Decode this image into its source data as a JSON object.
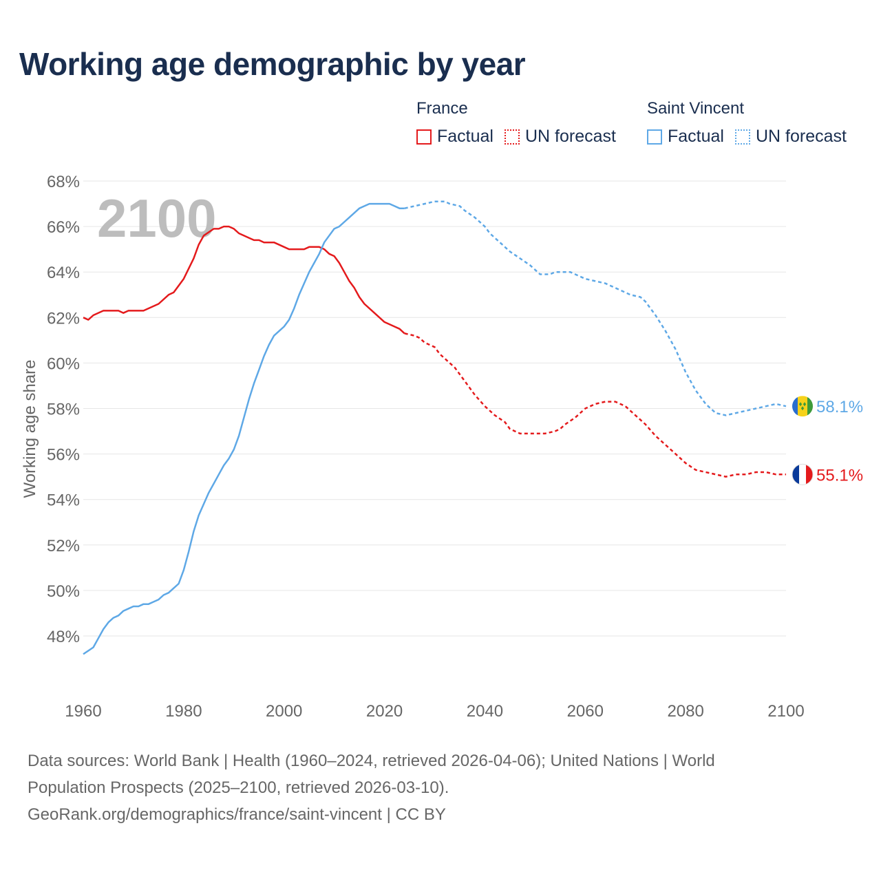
{
  "page": {
    "title": "Working age demographic by year"
  },
  "legend": {
    "groups": [
      {
        "name": "France",
        "color": "#e41a1c",
        "factual_label": "Factual",
        "forecast_label": "UN forecast"
      },
      {
        "name": "Saint Vincent",
        "color": "#5ea8e6",
        "factual_label": "Factual",
        "forecast_label": "UN forecast"
      }
    ]
  },
  "footer": {
    "line1": "Data sources: World Bank | Health (1960–2024, retrieved 2026-04-06); United Nations | World",
    "line2": "Population Prospects (2025–2100, retrieved 2026-03-10).",
    "line3": "GeoRank.org/demographics/france/saint-vincent | CC BY"
  },
  "chart_data": {
    "type": "line",
    "title": "Working age demographic by year",
    "xlabel": "",
    "ylabel": "Working age share",
    "xlim": [
      1960,
      2100
    ],
    "ylim": [
      46,
      68
    ],
    "x_ticks": [
      1960,
      1980,
      2000,
      2020,
      2040,
      2060,
      2080,
      2100
    ],
    "y_ticks": [
      48,
      50,
      52,
      54,
      56,
      58,
      60,
      62,
      64,
      66,
      68
    ],
    "y_tick_suffix": "%",
    "grid": true,
    "watermark_year": "2100",
    "factual_end_year": 2024,
    "series": [
      {
        "name": "France",
        "color": "#e41a1c",
        "end_label": "55.1%",
        "points": [
          [
            1960,
            62.0
          ],
          [
            1961,
            61.9
          ],
          [
            1962,
            62.1
          ],
          [
            1964,
            62.3
          ],
          [
            1967,
            62.3
          ],
          [
            1968,
            62.2
          ],
          [
            1969,
            62.3
          ],
          [
            1972,
            62.3
          ],
          [
            1975,
            62.6
          ],
          [
            1977,
            63.0
          ],
          [
            1978,
            63.1
          ],
          [
            1980,
            63.7
          ],
          [
            1982,
            64.6
          ],
          [
            1983,
            65.2
          ],
          [
            1984,
            65.6
          ],
          [
            1986,
            65.9
          ],
          [
            1987,
            65.9
          ],
          [
            1988,
            66.0
          ],
          [
            1989,
            66.0
          ],
          [
            1990,
            65.9
          ],
          [
            1991,
            65.7
          ],
          [
            1993,
            65.5
          ],
          [
            1994,
            65.4
          ],
          [
            1995,
            65.4
          ],
          [
            1996,
            65.3
          ],
          [
            1998,
            65.3
          ],
          [
            2000,
            65.1
          ],
          [
            2001,
            65.0
          ],
          [
            2004,
            65.0
          ],
          [
            2005,
            65.1
          ],
          [
            2007,
            65.1
          ],
          [
            2008,
            65.0
          ],
          [
            2009,
            64.8
          ],
          [
            2010,
            64.7
          ],
          [
            2011,
            64.4
          ],
          [
            2012,
            64.0
          ],
          [
            2013,
            63.6
          ],
          [
            2014,
            63.3
          ],
          [
            2015,
            62.9
          ],
          [
            2016,
            62.6
          ],
          [
            2018,
            62.2
          ],
          [
            2020,
            61.8
          ],
          [
            2022,
            61.6
          ],
          [
            2023,
            61.5
          ],
          [
            2024,
            61.3
          ],
          [
            2026,
            61.2
          ],
          [
            2027,
            61.1
          ],
          [
            2028,
            60.9
          ],
          [
            2030,
            60.7
          ],
          [
            2031,
            60.4
          ],
          [
            2032,
            60.2
          ],
          [
            2034,
            59.8
          ],
          [
            2036,
            59.2
          ],
          [
            2037,
            58.9
          ],
          [
            2038,
            58.6
          ],
          [
            2040,
            58.1
          ],
          [
            2042,
            57.7
          ],
          [
            2044,
            57.4
          ],
          [
            2045,
            57.1
          ],
          [
            2047,
            56.9
          ],
          [
            2050,
            56.9
          ],
          [
            2052,
            56.9
          ],
          [
            2054,
            57.0
          ],
          [
            2055,
            57.1
          ],
          [
            2056,
            57.3
          ],
          [
            2058,
            57.6
          ],
          [
            2060,
            58.0
          ],
          [
            2062,
            58.2
          ],
          [
            2064,
            58.3
          ],
          [
            2066,
            58.3
          ],
          [
            2068,
            58.1
          ],
          [
            2070,
            57.7
          ],
          [
            2072,
            57.3
          ],
          [
            2074,
            56.8
          ],
          [
            2076,
            56.4
          ],
          [
            2078,
            56.0
          ],
          [
            2080,
            55.6
          ],
          [
            2082,
            55.3
          ],
          [
            2084,
            55.2
          ],
          [
            2086,
            55.1
          ],
          [
            2088,
            55.0
          ],
          [
            2090,
            55.1
          ],
          [
            2092,
            55.1
          ],
          [
            2094,
            55.2
          ],
          [
            2096,
            55.2
          ],
          [
            2098,
            55.1
          ],
          [
            2100,
            55.1
          ]
        ]
      },
      {
        "name": "Saint Vincent",
        "color": "#5ea8e6",
        "end_label": "58.1%",
        "points": [
          [
            1960,
            47.2
          ],
          [
            1962,
            47.5
          ],
          [
            1963,
            47.9
          ],
          [
            1964,
            48.3
          ],
          [
            1965,
            48.6
          ],
          [
            1966,
            48.8
          ],
          [
            1967,
            48.9
          ],
          [
            1968,
            49.1
          ],
          [
            1969,
            49.2
          ],
          [
            1970,
            49.3
          ],
          [
            1971,
            49.3
          ],
          [
            1972,
            49.4
          ],
          [
            1973,
            49.4
          ],
          [
            1974,
            49.5
          ],
          [
            1975,
            49.6
          ],
          [
            1976,
            49.8
          ],
          [
            1977,
            49.9
          ],
          [
            1978,
            50.1
          ],
          [
            1979,
            50.3
          ],
          [
            1980,
            50.9
          ],
          [
            1981,
            51.7
          ],
          [
            1982,
            52.6
          ],
          [
            1983,
            53.3
          ],
          [
            1984,
            53.8
          ],
          [
            1985,
            54.3
          ],
          [
            1986,
            54.7
          ],
          [
            1987,
            55.1
          ],
          [
            1988,
            55.5
          ],
          [
            1989,
            55.8
          ],
          [
            1990,
            56.2
          ],
          [
            1991,
            56.8
          ],
          [
            1992,
            57.6
          ],
          [
            1993,
            58.4
          ],
          [
            1994,
            59.1
          ],
          [
            1995,
            59.7
          ],
          [
            1996,
            60.3
          ],
          [
            1997,
            60.8
          ],
          [
            1998,
            61.2
          ],
          [
            1999,
            61.4
          ],
          [
            2000,
            61.6
          ],
          [
            2001,
            61.9
          ],
          [
            2002,
            62.4
          ],
          [
            2003,
            63.0
          ],
          [
            2004,
            63.5
          ],
          [
            2005,
            64.0
          ],
          [
            2006,
            64.4
          ],
          [
            2007,
            64.8
          ],
          [
            2008,
            65.3
          ],
          [
            2009,
            65.6
          ],
          [
            2010,
            65.9
          ],
          [
            2011,
            66.0
          ],
          [
            2012,
            66.2
          ],
          [
            2013,
            66.4
          ],
          [
            2014,
            66.6
          ],
          [
            2015,
            66.8
          ],
          [
            2016,
            66.9
          ],
          [
            2017,
            67.0
          ],
          [
            2018,
            67.0
          ],
          [
            2020,
            67.0
          ],
          [
            2021,
            67.0
          ],
          [
            2022,
            66.9
          ],
          [
            2023,
            66.8
          ],
          [
            2024,
            66.8
          ],
          [
            2026,
            66.9
          ],
          [
            2028,
            67.0
          ],
          [
            2030,
            67.1
          ],
          [
            2032,
            67.1
          ],
          [
            2033,
            67.0
          ],
          [
            2035,
            66.9
          ],
          [
            2036,
            66.7
          ],
          [
            2038,
            66.4
          ],
          [
            2040,
            66.0
          ],
          [
            2041,
            65.7
          ],
          [
            2043,
            65.3
          ],
          [
            2045,
            64.9
          ],
          [
            2047,
            64.6
          ],
          [
            2049,
            64.3
          ],
          [
            2050,
            64.1
          ],
          [
            2051,
            63.9
          ],
          [
            2053,
            63.9
          ],
          [
            2054,
            64.0
          ],
          [
            2057,
            64.0
          ],
          [
            2058,
            63.9
          ],
          [
            2060,
            63.7
          ],
          [
            2062,
            63.6
          ],
          [
            2064,
            63.5
          ],
          [
            2066,
            63.3
          ],
          [
            2068,
            63.1
          ],
          [
            2069,
            63.0
          ],
          [
            2071,
            62.9
          ],
          [
            2072,
            62.7
          ],
          [
            2074,
            62.1
          ],
          [
            2076,
            61.4
          ],
          [
            2078,
            60.6
          ],
          [
            2080,
            59.6
          ],
          [
            2082,
            58.8
          ],
          [
            2084,
            58.2
          ],
          [
            2086,
            57.8
          ],
          [
            2088,
            57.7
          ],
          [
            2090,
            57.8
          ],
          [
            2092,
            57.9
          ],
          [
            2094,
            58.0
          ],
          [
            2096,
            58.1
          ],
          [
            2098,
            58.2
          ],
          [
            2100,
            58.1
          ]
        ]
      }
    ]
  }
}
